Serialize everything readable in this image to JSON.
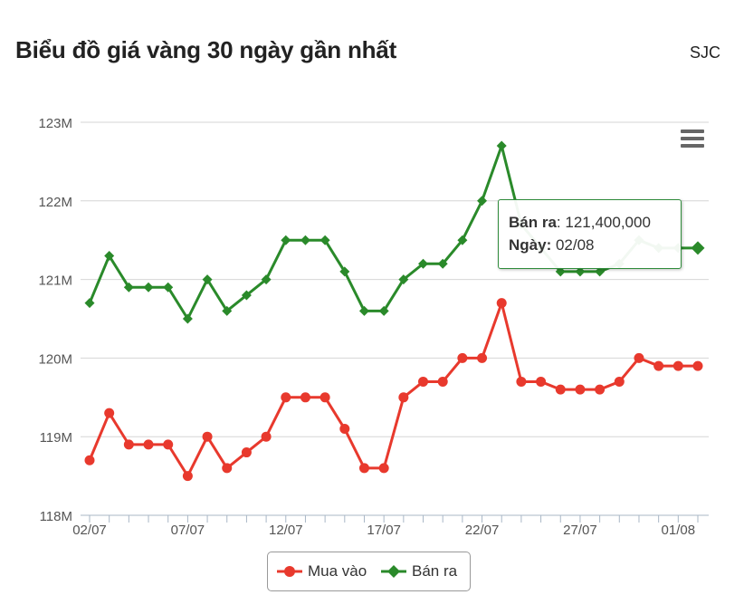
{
  "header": {
    "title": "Biểu đồ giá vàng 30 ngày gần nhất",
    "source": "SJC"
  },
  "tooltip": {
    "series_label": "Bán ra",
    "value": "121,400,000",
    "date_label": "Ngày:",
    "date": "02/08"
  },
  "colors": {
    "buy": "#e8392d",
    "sell": "#2a8a2a",
    "grid": "#d6d6d6",
    "axis_text": "#555555"
  },
  "chart_data": {
    "type": "line",
    "x": [
      "02/07",
      "03/07",
      "04/07",
      "05/07",
      "06/07",
      "07/07",
      "08/07",
      "09/07",
      "10/07",
      "11/07",
      "12/07",
      "13/07",
      "14/07",
      "15/07",
      "16/07",
      "17/07",
      "18/07",
      "19/07",
      "20/07",
      "21/07",
      "22/07",
      "23/07",
      "24/07",
      "25/07",
      "26/07",
      "27/07",
      "28/07",
      "29/07",
      "30/07",
      "31/07",
      "01/08",
      "02/08"
    ],
    "x_tick_labels": [
      "02/07",
      "07/07",
      "12/07",
      "17/07",
      "22/07",
      "27/07",
      "01/08"
    ],
    "y_tick_labels": [
      "118M",
      "119M",
      "120M",
      "121M",
      "122M",
      "123M"
    ],
    "ylim": [
      118000000,
      123000000
    ],
    "series": [
      {
        "name": "Mua vào",
        "marker": "circle",
        "values": [
          118700000,
          119300000,
          118900000,
          118900000,
          118900000,
          118500000,
          119000000,
          118600000,
          118800000,
          119000000,
          119500000,
          119500000,
          119500000,
          119100000,
          118600000,
          118600000,
          119500000,
          119700000,
          119700000,
          120000000,
          120000000,
          120700000,
          119700000,
          119700000,
          119600000,
          119600000,
          119600000,
          119700000,
          120000000,
          119900000,
          119900000,
          119900000
        ]
      },
      {
        "name": "Bán ra",
        "marker": "diamond",
        "values": [
          120700000,
          121300000,
          120900000,
          120900000,
          120900000,
          120500000,
          121000000,
          120600000,
          120800000,
          121000000,
          121500000,
          121500000,
          121500000,
          121100000,
          120600000,
          120600000,
          121000000,
          121200000,
          121200000,
          121500000,
          122000000,
          122700000,
          121700000,
          121400000,
          121100000,
          121100000,
          121100000,
          121200000,
          121500000,
          121400000,
          121400000,
          121400000
        ]
      }
    ],
    "hovered_point": {
      "series": "Bán ra",
      "x": "02/08",
      "value": 121400000
    },
    "grid": true,
    "legend_position": "bottom-center"
  }
}
